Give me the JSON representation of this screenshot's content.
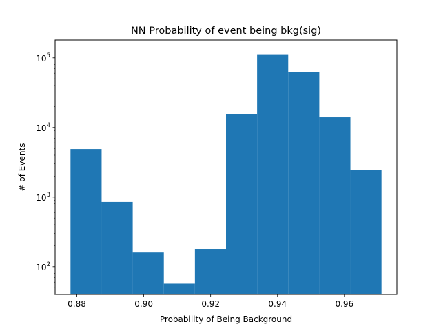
{
  "chart_data": {
    "type": "bar",
    "title": "NN Probability of event being bkg(sig)",
    "xlabel": "Probability of Being Background",
    "ylabel": "# of Events",
    "yscale": "log",
    "grid": false,
    "color": "#1f77b4",
    "bins": [
      {
        "x0": 0.8781,
        "x1": 0.8874,
        "value": 4900
      },
      {
        "x0": 0.8874,
        "x1": 0.8967,
        "value": 850
      },
      {
        "x0": 0.8967,
        "x1": 0.906,
        "value": 160
      },
      {
        "x0": 0.906,
        "x1": 0.9153,
        "value": 57
      },
      {
        "x0": 0.9153,
        "x1": 0.9246,
        "value": 180
      },
      {
        "x0": 0.9246,
        "x1": 0.9339,
        "value": 15500
      },
      {
        "x0": 0.9339,
        "x1": 0.9432,
        "value": 110000
      },
      {
        "x0": 0.9432,
        "x1": 0.9525,
        "value": 62000
      },
      {
        "x0": 0.9525,
        "x1": 0.9618,
        "value": 14000
      },
      {
        "x0": 0.9618,
        "x1": 0.9711,
        "value": 2450
      }
    ],
    "xlim": [
      0.8735,
      0.9757
    ],
    "ylim": [
      40,
      180000
    ],
    "xticks": [
      0.88,
      0.9,
      0.92,
      0.94,
      0.96
    ],
    "xtick_labels": [
      "0.88",
      "0.90",
      "0.92",
      "0.94",
      "0.96"
    ],
    "yticks": [
      100,
      1000,
      10000,
      100000
    ],
    "ytick_labels": [
      {
        "base": "10",
        "exp": "2"
      },
      {
        "base": "10",
        "exp": "3"
      },
      {
        "base": "10",
        "exp": "4"
      },
      {
        "base": "10",
        "exp": "5"
      }
    ]
  }
}
